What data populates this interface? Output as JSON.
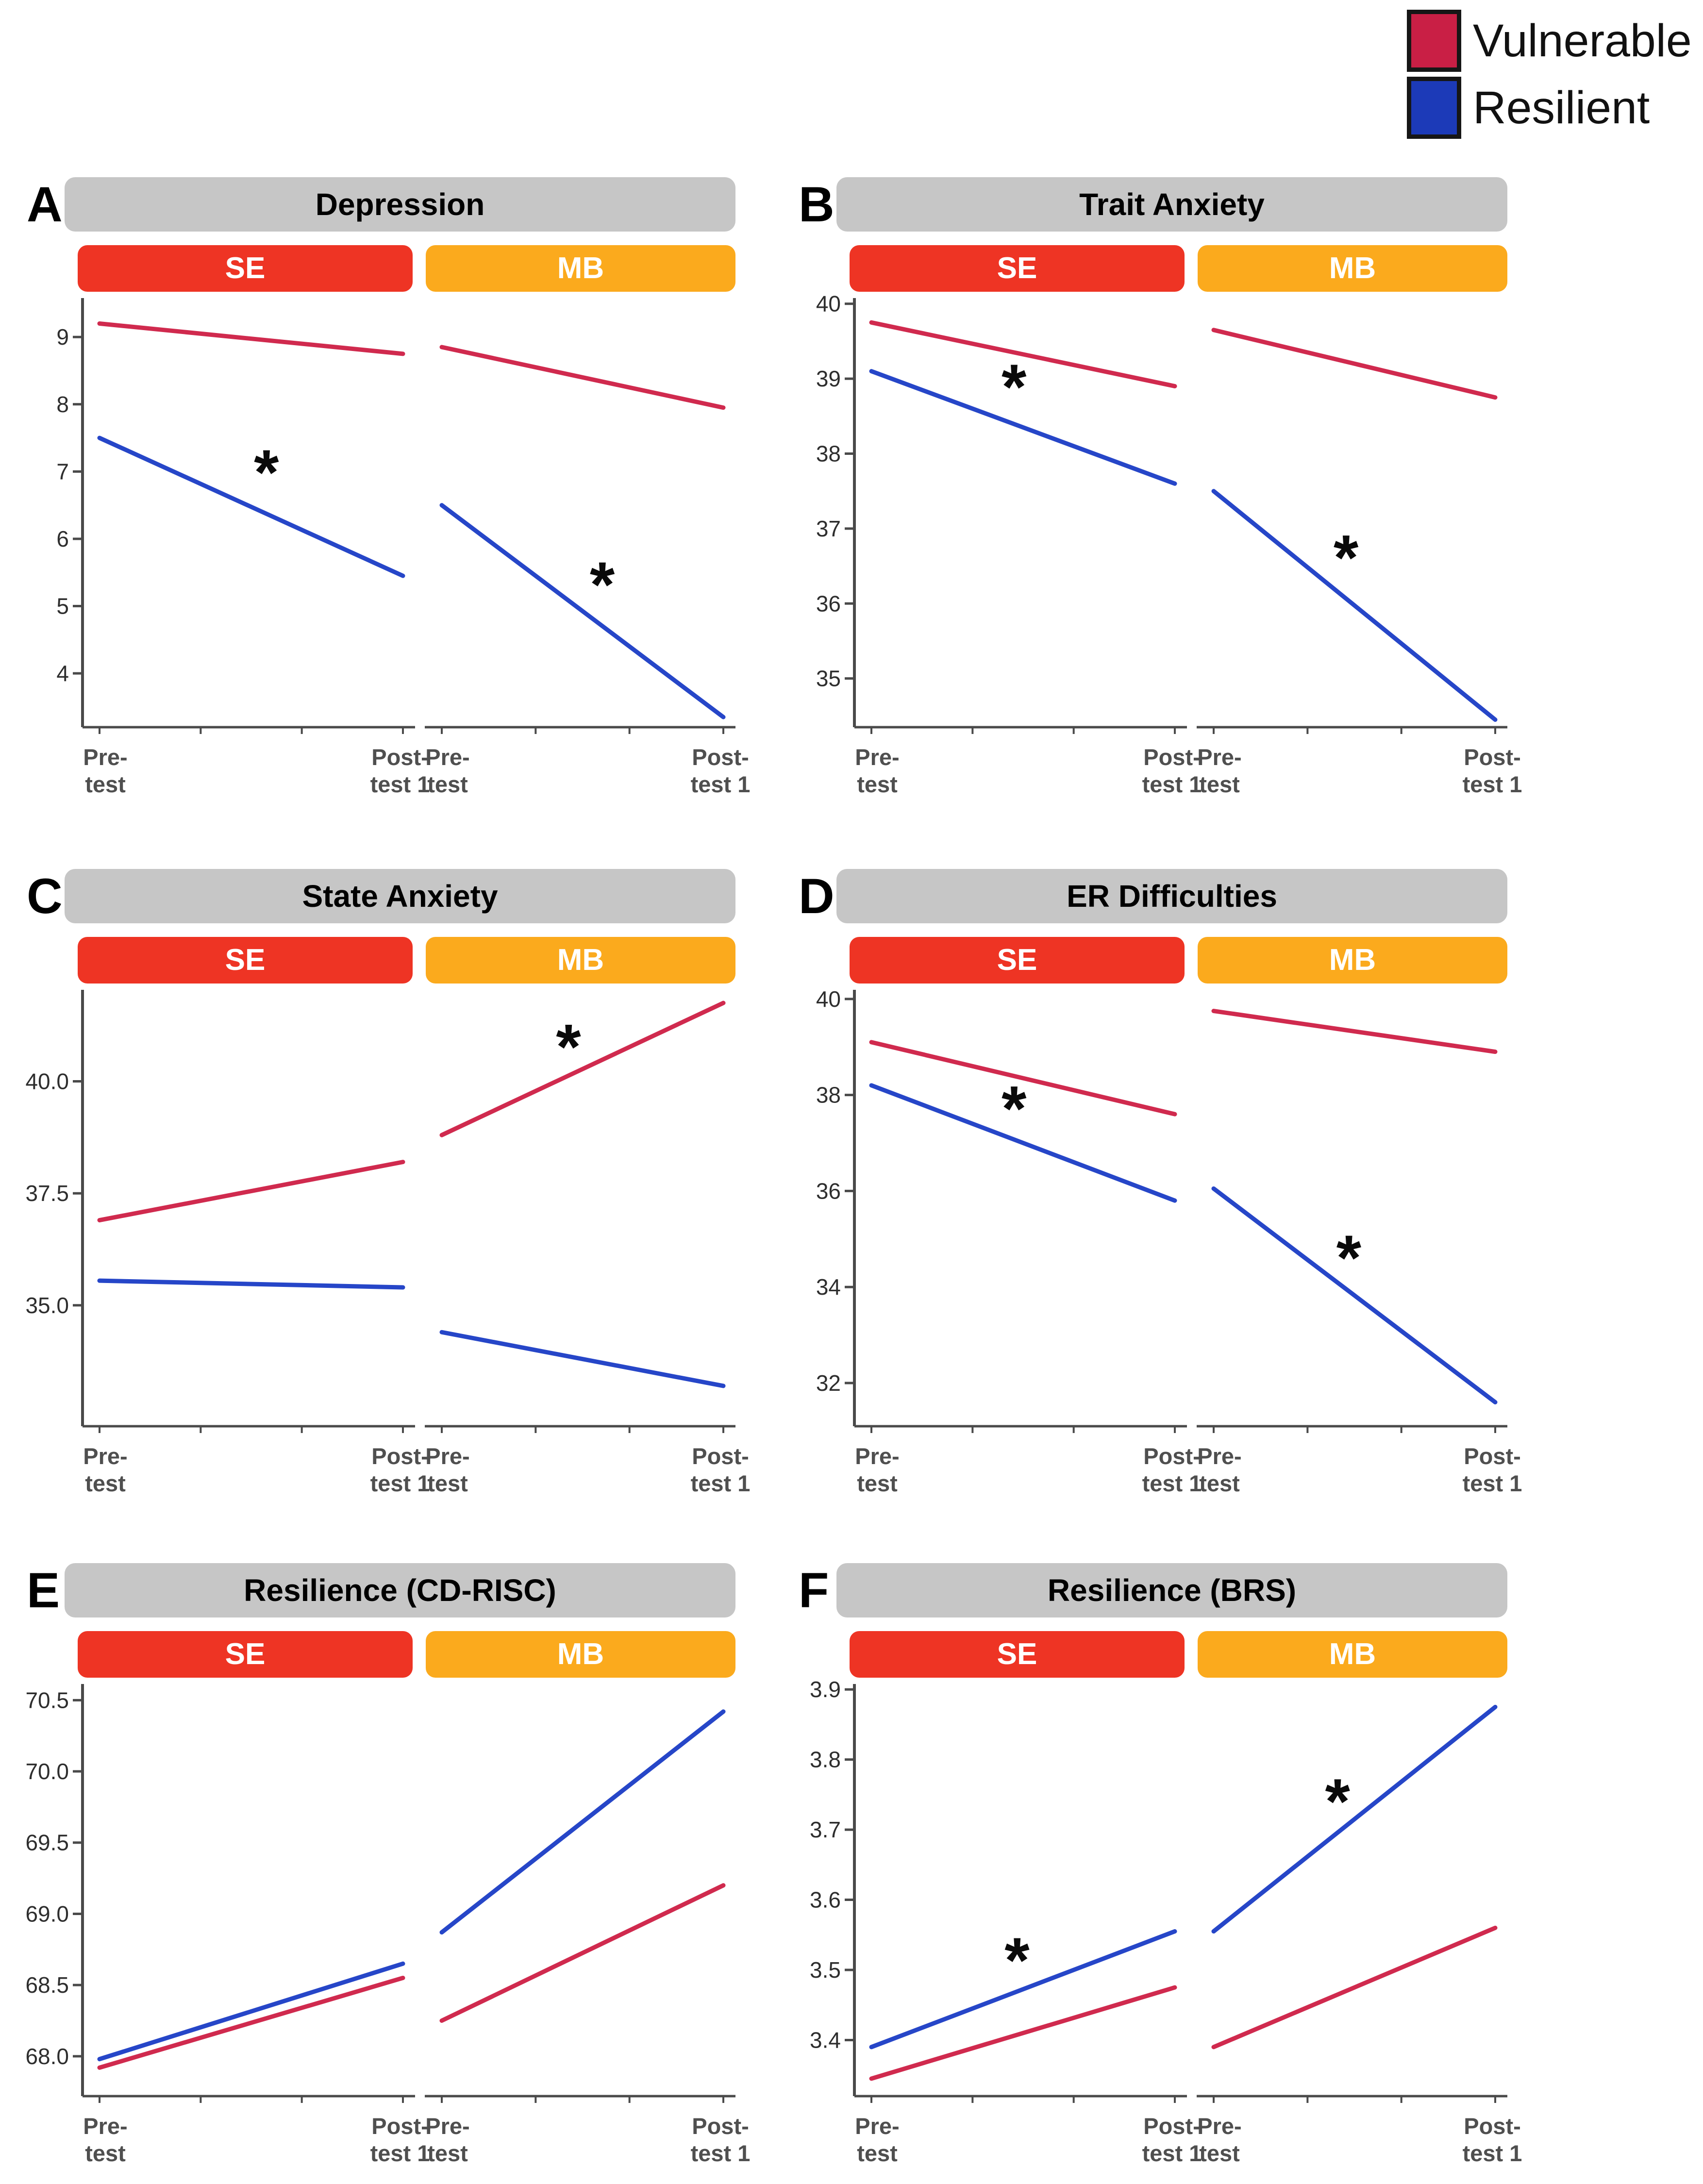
{
  "legend": {
    "items": [
      {
        "label": "Vulnerable",
        "color": "#c91f45"
      },
      {
        "label": "Resilient",
        "color": "#1c3ab8"
      }
    ]
  },
  "conditions": {
    "se": {
      "label": "SE",
      "color": "#ee3424"
    },
    "mb": {
      "label": "MB",
      "color": "#fbaa1d"
    }
  },
  "x_labels": {
    "pre": [
      "Pre-",
      "test"
    ],
    "post": [
      "Post-",
      "test 1"
    ]
  },
  "significance_marker": "*",
  "colors": {
    "vulnerable_line": "#d02a4e",
    "resilient_line": "#2646c8",
    "title_bar": "#c6c6c6",
    "axis": "#4a4a4a"
  },
  "chart_data": [
    {
      "panel": "A",
      "title": "Depression",
      "type": "line",
      "x": [
        "Pre-test",
        "Post-test 1"
      ],
      "ylim": [
        3.2,
        9.55
      ],
      "yticks": [
        {
          "v": 9,
          "label": "9"
        },
        {
          "v": 8,
          "label": "8"
        },
        {
          "v": 7,
          "label": "7"
        },
        {
          "v": 6,
          "label": "6"
        },
        {
          "v": 5,
          "label": "5"
        },
        {
          "v": 4,
          "label": "4"
        }
      ],
      "subplots": [
        {
          "condition": "SE",
          "series": [
            {
              "name": "Vulnerable",
              "values": [
                9.2,
                8.75
              ]
            },
            {
              "name": "Resilient",
              "values": [
                7.5,
                5.45
              ]
            }
          ],
          "asterisk": {
            "series": "Resilient",
            "x_frac": 0.55,
            "dy": 0.62
          }
        },
        {
          "condition": "MB",
          "series": [
            {
              "name": "Vulnerable",
              "values": [
                8.85,
                7.95
              ]
            },
            {
              "name": "Resilient",
              "values": [
                6.5,
                3.35
              ]
            }
          ],
          "asterisk": {
            "series": "Resilient",
            "x_frac": 0.57,
            "dy": 0.62
          }
        }
      ]
    },
    {
      "panel": "B",
      "title": "Trait Anxiety",
      "type": "line",
      "x": [
        "Pre-test",
        "Post-test 1"
      ],
      "ylim": [
        34.35,
        40.05
      ],
      "yticks": [
        {
          "v": 40,
          "label": "40"
        },
        {
          "v": 39,
          "label": "39"
        },
        {
          "v": 38,
          "label": "38"
        },
        {
          "v": 37,
          "label": "37"
        },
        {
          "v": 36,
          "label": "36"
        },
        {
          "v": 35,
          "label": "35"
        }
      ],
      "subplots": [
        {
          "condition": "SE",
          "series": [
            {
              "name": "Vulnerable",
              "values": [
                39.75,
                38.9
              ]
            },
            {
              "name": "Resilient",
              "values": [
                39.1,
                37.6
              ]
            }
          ],
          "asterisk": {
            "series": "Resilient",
            "x_frac": 0.47,
            "dy": 0.5
          }
        },
        {
          "condition": "MB",
          "series": [
            {
              "name": "Vulnerable",
              "values": [
                39.65,
                38.75
              ]
            },
            {
              "name": "Resilient",
              "values": [
                37.5,
                34.45
              ]
            }
          ],
          "asterisk": {
            "series": "Resilient",
            "x_frac": 0.47,
            "dy": 0.55
          }
        }
      ]
    },
    {
      "panel": "C",
      "title": "State Anxiety",
      "type": "line",
      "x": [
        "Pre-test",
        "Post-test 1"
      ],
      "ylim": [
        32.3,
        42.0
      ],
      "yticks": [
        {
          "v": 40.0,
          "label": "40.0"
        },
        {
          "v": 37.5,
          "label": "37.5"
        },
        {
          "v": 35.0,
          "label": "35.0"
        }
      ],
      "subplots": [
        {
          "condition": "SE",
          "series": [
            {
              "name": "Vulnerable",
              "values": [
                36.9,
                38.2
              ]
            },
            {
              "name": "Resilient",
              "values": [
                35.55,
                35.4
              ]
            }
          ],
          "asterisk": null
        },
        {
          "condition": "MB",
          "series": [
            {
              "name": "Vulnerable",
              "values": [
                38.8,
                41.75
              ]
            },
            {
              "name": "Resilient",
              "values": [
                34.4,
                33.2
              ]
            }
          ],
          "asterisk": {
            "series": "Vulnerable",
            "x_frac": 0.45,
            "dy": 0.65
          }
        }
      ]
    },
    {
      "panel": "D",
      "title": "ER Difficulties",
      "type": "line",
      "x": [
        "Pre-test",
        "Post-test 1"
      ],
      "ylim": [
        31.1,
        40.15
      ],
      "yticks": [
        {
          "v": 40,
          "label": "40"
        },
        {
          "v": 38,
          "label": "38"
        },
        {
          "v": 36,
          "label": "36"
        },
        {
          "v": 34,
          "label": "34"
        },
        {
          "v": 32,
          "label": "32"
        }
      ],
      "subplots": [
        {
          "condition": "SE",
          "series": [
            {
              "name": "Vulnerable",
              "values": [
                39.1,
                37.6
              ]
            },
            {
              "name": "Resilient",
              "values": [
                38.2,
                35.8
              ]
            }
          ],
          "asterisk": {
            "series": "Resilient",
            "x_frac": 0.47,
            "dy": 0.65
          }
        },
        {
          "condition": "MB",
          "series": [
            {
              "name": "Vulnerable",
              "values": [
                39.75,
                38.9
              ]
            },
            {
              "name": "Resilient",
              "values": [
                36.05,
                31.6
              ]
            }
          ],
          "asterisk": {
            "series": "Resilient",
            "x_frac": 0.48,
            "dy": 0.7
          }
        }
      ]
    },
    {
      "panel": "E",
      "title": "Resilience (CD-RISC)",
      "type": "line",
      "x": [
        "Pre-test",
        "Post-test 1"
      ],
      "ylim": [
        67.72,
        70.6
      ],
      "yticks": [
        {
          "v": 70.5,
          "label": "70.5"
        },
        {
          "v": 70.0,
          "label": "70.0"
        },
        {
          "v": 69.5,
          "label": "69.5"
        },
        {
          "v": 69.0,
          "label": "69.0"
        },
        {
          "v": 68.5,
          "label": "68.5"
        },
        {
          "v": 68.0,
          "label": "68.0"
        }
      ],
      "subplots": [
        {
          "condition": "SE",
          "series": [
            {
              "name": "Vulnerable",
              "values": [
                67.92,
                68.55
              ]
            },
            {
              "name": "Resilient",
              "values": [
                67.98,
                68.65
              ]
            }
          ],
          "asterisk": null
        },
        {
          "condition": "MB",
          "series": [
            {
              "name": "Vulnerable",
              "values": [
                68.25,
                69.2
              ]
            },
            {
              "name": "Resilient",
              "values": [
                68.87,
                70.42
              ]
            }
          ],
          "asterisk": null
        }
      ]
    },
    {
      "panel": "F",
      "title": "Resilience (BRS)",
      "type": "line",
      "x": [
        "Pre-test",
        "Post-test 1"
      ],
      "ylim": [
        3.32,
        3.905
      ],
      "yticks": [
        {
          "v": 3.9,
          "label": "3.9"
        },
        {
          "v": 3.8,
          "label": "3.8"
        },
        {
          "v": 3.7,
          "label": "3.7"
        },
        {
          "v": 3.6,
          "label": "3.6"
        },
        {
          "v": 3.5,
          "label": "3.5"
        },
        {
          "v": 3.4,
          "label": "3.4"
        }
      ],
      "subplots": [
        {
          "condition": "SE",
          "series": [
            {
              "name": "Vulnerable",
              "values": [
                3.345,
                3.475
              ]
            },
            {
              "name": "Resilient",
              "values": [
                3.39,
                3.555
              ]
            }
          ],
          "asterisk": {
            "series": "Resilient",
            "x_frac": 0.48,
            "dy": 0.045
          }
        },
        {
          "condition": "MB",
          "series": [
            {
              "name": "Vulnerable",
              "values": [
                3.39,
                3.56
              ]
            },
            {
              "name": "Resilient",
              "values": [
                3.555,
                3.875
              ]
            }
          ],
          "asterisk": {
            "series": "Resilient",
            "x_frac": 0.44,
            "dy": 0.045
          }
        }
      ]
    }
  ]
}
